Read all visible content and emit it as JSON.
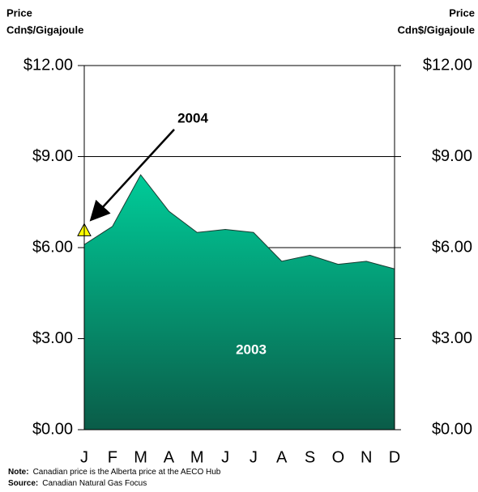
{
  "chart_data": {
    "type": "area",
    "ylabel_lines": [
      "Price",
      "Cdn$/Gigajoule"
    ],
    "y2label_lines": [
      "Price",
      "Cdn$/Gigajoule"
    ],
    "categories": [
      "J",
      "F",
      "M",
      "A",
      "M",
      "J",
      "J",
      "A",
      "S",
      "O",
      "N",
      "D"
    ],
    "series": [
      {
        "name": "2003",
        "color": "#00c896",
        "values": [
          6.1,
          6.7,
          8.4,
          7.2,
          6.5,
          6.6,
          6.5,
          5.55,
          5.75,
          5.45,
          5.55,
          5.3
        ]
      },
      {
        "name": "2004",
        "color": "#ffff00",
        "values": [
          6.55,
          null,
          null,
          null,
          null,
          null,
          null,
          null,
          null,
          null,
          null,
          null
        ]
      }
    ],
    "ylim": [
      0,
      12
    ],
    "yticks": [
      {
        "value": 0,
        "label": "$0.00"
      },
      {
        "value": 3,
        "label": "$3.00"
      },
      {
        "value": 6,
        "label": "$6.00"
      },
      {
        "value": 9,
        "label": "$9.00"
      },
      {
        "value": 12,
        "label": "$12.00"
      }
    ],
    "y2lim": [
      0,
      12
    ],
    "y2ticks": [
      {
        "value": 0,
        "label": "$0.00"
      },
      {
        "value": 3,
        "label": "$3.00"
      },
      {
        "value": 6,
        "label": "$6.00"
      },
      {
        "value": 9,
        "label": "$9.00"
      },
      {
        "value": 12,
        "label": "$12.00"
      }
    ],
    "grid": true,
    "notes": [
      {
        "label": "Note:",
        "text": "Canadian price is the Alberta price at the AECO Hub"
      },
      {
        "label": "Source:",
        "text": "Canadian Natural Gas Focus"
      }
    ]
  }
}
